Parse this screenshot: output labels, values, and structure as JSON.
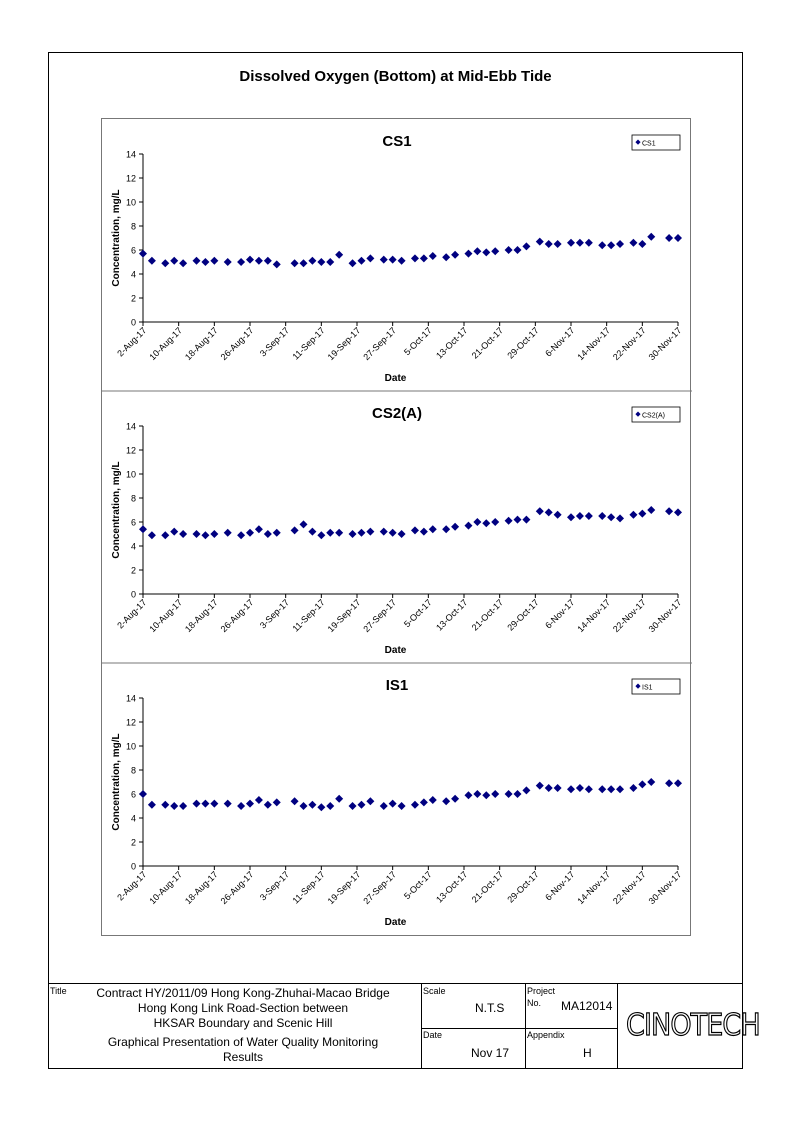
{
  "page": {
    "title": "Dissolved Oxygen (Bottom) at Mid-Ebb Tide"
  },
  "chart_data": [
    {
      "type": "scatter",
      "title": "CS1",
      "xlabel": "Date",
      "ylabel": "Concentration, mg/L",
      "ylim": [
        0,
        14
      ],
      "yticks": [
        0,
        2,
        4,
        6,
        8,
        10,
        12,
        14
      ],
      "xlim": [
        "2017-08-02",
        "2017-11-30"
      ],
      "xtick_labels": [
        "2-Aug-17",
        "10-Aug-17",
        "18-Aug-17",
        "26-Aug-17",
        "3-Sep-17",
        "11-Sep-17",
        "19-Sep-17",
        "27-Sep-17",
        "5-Oct-17",
        "13-Oct-17",
        "21-Oct-17",
        "29-Oct-17",
        "6-Nov-17",
        "14-Nov-17",
        "22-Nov-17",
        "30-Nov-17"
      ],
      "legend": "top-right",
      "color": "#000080",
      "series": [
        {
          "name": "CS1",
          "points": [
            [
              "2017-08-02",
              5.7
            ],
            [
              "2017-08-04",
              5.1
            ],
            [
              "2017-08-07",
              4.9
            ],
            [
              "2017-08-09",
              5.1
            ],
            [
              "2017-08-11",
              4.9
            ],
            [
              "2017-08-14",
              5.1
            ],
            [
              "2017-08-16",
              5.0
            ],
            [
              "2017-08-18",
              5.1
            ],
            [
              "2017-08-21",
              5.0
            ],
            [
              "2017-08-24",
              5.0
            ],
            [
              "2017-08-26",
              5.2
            ],
            [
              "2017-08-28",
              5.1
            ],
            [
              "2017-08-30",
              5.1
            ],
            [
              "2017-09-01",
              4.8
            ],
            [
              "2017-09-05",
              4.9
            ],
            [
              "2017-09-07",
              4.9
            ],
            [
              "2017-09-09",
              5.1
            ],
            [
              "2017-09-11",
              5.0
            ],
            [
              "2017-09-13",
              5.0
            ],
            [
              "2017-09-15",
              5.6
            ],
            [
              "2017-09-18",
              4.9
            ],
            [
              "2017-09-20",
              5.1
            ],
            [
              "2017-09-22",
              5.3
            ],
            [
              "2017-09-25",
              5.2
            ],
            [
              "2017-09-27",
              5.2
            ],
            [
              "2017-09-29",
              5.1
            ],
            [
              "2017-10-02",
              5.3
            ],
            [
              "2017-10-04",
              5.3
            ],
            [
              "2017-10-06",
              5.5
            ],
            [
              "2017-10-09",
              5.4
            ],
            [
              "2017-10-11",
              5.6
            ],
            [
              "2017-10-14",
              5.7
            ],
            [
              "2017-10-16",
              5.9
            ],
            [
              "2017-10-18",
              5.8
            ],
            [
              "2017-10-20",
              5.9
            ],
            [
              "2017-10-23",
              6.0
            ],
            [
              "2017-10-25",
              6.0
            ],
            [
              "2017-10-27",
              6.3
            ],
            [
              "2017-10-30",
              6.7
            ],
            [
              "2017-11-01",
              6.5
            ],
            [
              "2017-11-03",
              6.5
            ],
            [
              "2017-11-06",
              6.6
            ],
            [
              "2017-11-08",
              6.6
            ],
            [
              "2017-11-10",
              6.6
            ],
            [
              "2017-11-13",
              6.4
            ],
            [
              "2017-11-15",
              6.4
            ],
            [
              "2017-11-17",
              6.5
            ],
            [
              "2017-11-20",
              6.6
            ],
            [
              "2017-11-22",
              6.5
            ],
            [
              "2017-11-24",
              7.1
            ],
            [
              "2017-11-28",
              7.0
            ],
            [
              "2017-11-30",
              7.0
            ]
          ]
        }
      ]
    },
    {
      "type": "scatter",
      "title": "CS2(A)",
      "xlabel": "Date",
      "ylabel": "Concentration, mg/L",
      "ylim": [
        0,
        14
      ],
      "yticks": [
        0,
        2,
        4,
        6,
        8,
        10,
        12,
        14
      ],
      "xlim": [
        "2017-08-02",
        "2017-11-30"
      ],
      "xtick_labels": [
        "2-Aug-17",
        "10-Aug-17",
        "18-Aug-17",
        "26-Aug-17",
        "3-Sep-17",
        "11-Sep-17",
        "19-Sep-17",
        "27-Sep-17",
        "5-Oct-17",
        "13-Oct-17",
        "21-Oct-17",
        "29-Oct-17",
        "6-Nov-17",
        "14-Nov-17",
        "22-Nov-17",
        "30-Nov-17"
      ],
      "legend": "top-right",
      "color": "#000080",
      "series": [
        {
          "name": "CS2(A)",
          "points": [
            [
              "2017-08-02",
              5.4
            ],
            [
              "2017-08-04",
              4.9
            ],
            [
              "2017-08-07",
              4.9
            ],
            [
              "2017-08-09",
              5.2
            ],
            [
              "2017-08-11",
              5.0
            ],
            [
              "2017-08-14",
              5.0
            ],
            [
              "2017-08-16",
              4.9
            ],
            [
              "2017-08-18",
              5.0
            ],
            [
              "2017-08-21",
              5.1
            ],
            [
              "2017-08-24",
              4.9
            ],
            [
              "2017-08-26",
              5.1
            ],
            [
              "2017-08-28",
              5.4
            ],
            [
              "2017-08-30",
              5.0
            ],
            [
              "2017-09-01",
              5.1
            ],
            [
              "2017-09-05",
              5.3
            ],
            [
              "2017-09-07",
              5.8
            ],
            [
              "2017-09-09",
              5.2
            ],
            [
              "2017-09-11",
              4.9
            ],
            [
              "2017-09-13",
              5.1
            ],
            [
              "2017-09-15",
              5.1
            ],
            [
              "2017-09-18",
              5.0
            ],
            [
              "2017-09-20",
              5.1
            ],
            [
              "2017-09-22",
              5.2
            ],
            [
              "2017-09-25",
              5.2
            ],
            [
              "2017-09-27",
              5.1
            ],
            [
              "2017-09-29",
              5.0
            ],
            [
              "2017-10-02",
              5.3
            ],
            [
              "2017-10-04",
              5.2
            ],
            [
              "2017-10-06",
              5.4
            ],
            [
              "2017-10-09",
              5.4
            ],
            [
              "2017-10-11",
              5.6
            ],
            [
              "2017-10-14",
              5.7
            ],
            [
              "2017-10-16",
              6.0
            ],
            [
              "2017-10-18",
              5.9
            ],
            [
              "2017-10-20",
              6.0
            ],
            [
              "2017-10-23",
              6.1
            ],
            [
              "2017-10-25",
              6.2
            ],
            [
              "2017-10-27",
              6.2
            ],
            [
              "2017-10-30",
              6.9
            ],
            [
              "2017-11-01",
              6.8
            ],
            [
              "2017-11-03",
              6.6
            ],
            [
              "2017-11-06",
              6.4
            ],
            [
              "2017-11-08",
              6.5
            ],
            [
              "2017-11-10",
              6.5
            ],
            [
              "2017-11-13",
              6.5
            ],
            [
              "2017-11-15",
              6.4
            ],
            [
              "2017-11-17",
              6.3
            ],
            [
              "2017-11-20",
              6.6
            ],
            [
              "2017-11-22",
              6.7
            ],
            [
              "2017-11-24",
              7.0
            ],
            [
              "2017-11-28",
              6.9
            ],
            [
              "2017-11-30",
              6.8
            ]
          ]
        }
      ]
    },
    {
      "type": "scatter",
      "title": "IS1",
      "xlabel": "Date",
      "ylabel": "Concentration, mg/L",
      "ylim": [
        0,
        14
      ],
      "yticks": [
        0,
        2,
        4,
        6,
        8,
        10,
        12,
        14
      ],
      "xlim": [
        "2017-08-02",
        "2017-11-30"
      ],
      "xtick_labels": [
        "2-Aug-17",
        "10-Aug-17",
        "18-Aug-17",
        "26-Aug-17",
        "3-Sep-17",
        "11-Sep-17",
        "19-Sep-17",
        "27-Sep-17",
        "5-Oct-17",
        "13-Oct-17",
        "21-Oct-17",
        "29-Oct-17",
        "6-Nov-17",
        "14-Nov-17",
        "22-Nov-17",
        "30-Nov-17"
      ],
      "legend": "top-right",
      "color": "#000080",
      "series": [
        {
          "name": "IS1",
          "points": [
            [
              "2017-08-02",
              6.0
            ],
            [
              "2017-08-04",
              5.1
            ],
            [
              "2017-08-07",
              5.1
            ],
            [
              "2017-08-09",
              5.0
            ],
            [
              "2017-08-11",
              5.0
            ],
            [
              "2017-08-14",
              5.2
            ],
            [
              "2017-08-16",
              5.2
            ],
            [
              "2017-08-18",
              5.2
            ],
            [
              "2017-08-21",
              5.2
            ],
            [
              "2017-08-24",
              5.0
            ],
            [
              "2017-08-26",
              5.2
            ],
            [
              "2017-08-28",
              5.5
            ],
            [
              "2017-08-30",
              5.1
            ],
            [
              "2017-09-01",
              5.3
            ],
            [
              "2017-09-05",
              5.4
            ],
            [
              "2017-09-07",
              5.0
            ],
            [
              "2017-09-09",
              5.1
            ],
            [
              "2017-09-11",
              4.9
            ],
            [
              "2017-09-13",
              5.0
            ],
            [
              "2017-09-15",
              5.6
            ],
            [
              "2017-09-18",
              5.0
            ],
            [
              "2017-09-20",
              5.1
            ],
            [
              "2017-09-22",
              5.4
            ],
            [
              "2017-09-25",
              5.0
            ],
            [
              "2017-09-27",
              5.2
            ],
            [
              "2017-09-29",
              5.0
            ],
            [
              "2017-10-02",
              5.1
            ],
            [
              "2017-10-04",
              5.3
            ],
            [
              "2017-10-06",
              5.5
            ],
            [
              "2017-10-09",
              5.4
            ],
            [
              "2017-10-11",
              5.6
            ],
            [
              "2017-10-14",
              5.9
            ],
            [
              "2017-10-16",
              6.0
            ],
            [
              "2017-10-18",
              5.9
            ],
            [
              "2017-10-20",
              6.0
            ],
            [
              "2017-10-23",
              6.0
            ],
            [
              "2017-10-25",
              6.0
            ],
            [
              "2017-10-27",
              6.3
            ],
            [
              "2017-10-30",
              6.7
            ],
            [
              "2017-11-01",
              6.5
            ],
            [
              "2017-11-03",
              6.5
            ],
            [
              "2017-11-06",
              6.4
            ],
            [
              "2017-11-08",
              6.5
            ],
            [
              "2017-11-10",
              6.4
            ],
            [
              "2017-11-13",
              6.4
            ],
            [
              "2017-11-15",
              6.4
            ],
            [
              "2017-11-17",
              6.4
            ],
            [
              "2017-11-20",
              6.5
            ],
            [
              "2017-11-22",
              6.8
            ],
            [
              "2017-11-24",
              7.0
            ],
            [
              "2017-11-28",
              6.9
            ],
            [
              "2017-11-30",
              6.9
            ]
          ]
        }
      ]
    }
  ],
  "title_block": {
    "title_label": "Title",
    "title_line1": "Contract HY/2011/09 Hong Kong-Zhuhai-Macao Bridge",
    "title_line2": "Hong Kong Link Road-Section between",
    "title_line3": "HKSAR Boundary and Scenic Hill",
    "title_line4": "Graphical Presentation of Water Quality Monitoring",
    "title_line5": "Results",
    "scale_label": "Scale",
    "scale_value": "N.T.S",
    "project_label": "Project",
    "project_no_label": "No.",
    "project_value": "MA12014",
    "date_label": "Date",
    "date_value": "Nov 17",
    "appendix_label": "Appendix",
    "appendix_value": "H",
    "logo_text": "CINOTECH"
  }
}
